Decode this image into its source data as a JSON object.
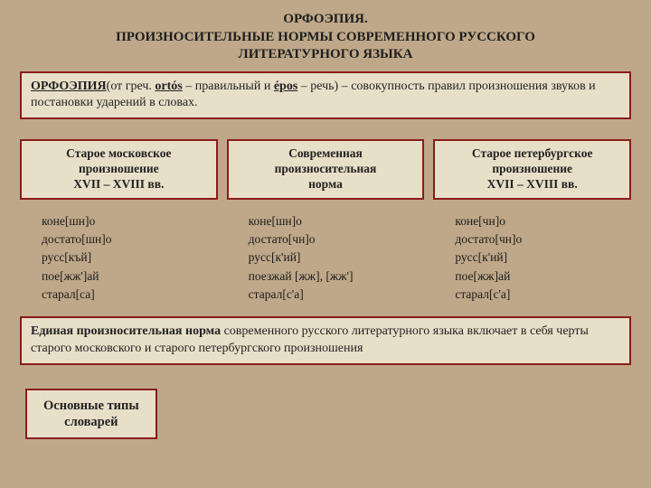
{
  "colors": {
    "page_bg": "#bfa889",
    "box_bg": "#e8dfc8",
    "box_border": "#8a1c1c",
    "text": "#222222"
  },
  "title": {
    "line1": "ОРФОЭПИЯ.",
    "line2": "ПРОИЗНОСИТЕЛЬНЫЕ НОРМЫ СОВРЕМЕННОГО РУССКОГО",
    "line3": "ЛИТЕРАТУРНОГО ЯЗЫКА",
    "fontsize": 15
  },
  "definition": {
    "term": "ОРФОЭПИЯ",
    "etym_prefix": "(от греч. ",
    "etym_word1": "ortós",
    "etym_mid1": " – правильный и ",
    "etym_word2": "épos",
    "etym_mid2": " – речь) – совокупность правил произношения звуков и постановки ударений в словах."
  },
  "columns": [
    {
      "head_l1": "Старое московское",
      "head_l2": "произношение",
      "head_l3": "XVII – XVIII вв.",
      "body": "коне[шн]о\nдостато[шн]о\nрусс[къй]\nпое[жж']ай\nстарал[са]"
    },
    {
      "head_l1": "Современная",
      "head_l2": "произносительная",
      "head_l3": "норма",
      "body": "коне[шн]о\nдостато[чн]о\nрусс[к'ий]\nпоезжай [жж], [жж']\nстарал[с'а]"
    },
    {
      "head_l1": "Старое петербургское",
      "head_l2": "произношение",
      "head_l3": "XVII – XVIII вв.",
      "body": "коне[чн]о\nдостато[чн]о\nрусс[к'ий]\nпое[жж]ай\nстарал[с'а]"
    }
  ],
  "summary": {
    "bold": "Единая произносительная норма",
    "rest": " современного русского литературного языка включает в себя черты старого московского и старого петербургского произношения"
  },
  "link": {
    "l1": "Основные типы",
    "l2": "словарей"
  }
}
